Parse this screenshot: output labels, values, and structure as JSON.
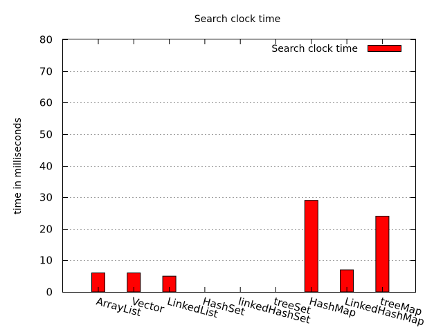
{
  "chart_data": {
    "type": "bar",
    "title": "Search clock time",
    "xlabel": "",
    "ylabel": "time in milliseconds",
    "ylim": [
      0,
      80
    ],
    "yticks": [
      0,
      10,
      20,
      30,
      40,
      50,
      60,
      70,
      80
    ],
    "grid": true,
    "legend_position": "top-right",
    "categories": [
      "ArrayList",
      "Vector",
      "LinkedList",
      "HashSet",
      "linkedHashSet",
      "treeSet",
      "HashMap",
      "LinkedHashMap",
      "treeMap"
    ],
    "series": [
      {
        "name": "Search clock time",
        "color": "#ff0000",
        "values": [
          6,
          6,
          5,
          0,
          0,
          0,
          29,
          7,
          24
        ]
      }
    ]
  }
}
